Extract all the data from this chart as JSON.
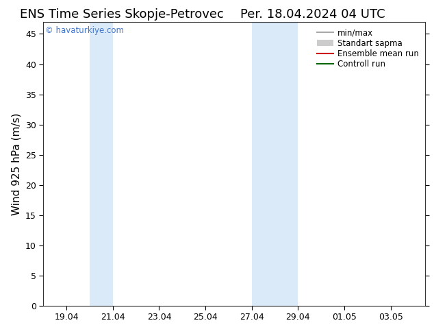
{
  "title_left": "ENS Time Series Skopje-Petrovec",
  "title_right": "Per. 18.04.2024 04 UTC",
  "ylabel": "Wind 925 hPa (m/s)",
  "watermark": "© havaturkiye.com",
  "watermark_color": "#4477cc",
  "ylim": [
    0,
    47
  ],
  "yticks": [
    0,
    5,
    10,
    15,
    20,
    25,
    30,
    35,
    40,
    45
  ],
  "xtick_labels": [
    "19.04",
    "21.04",
    "23.04",
    "25.04",
    "27.04",
    "29.04",
    "01.05",
    "03.05"
  ],
  "xtick_positions": [
    1.0,
    3.0,
    5.0,
    7.0,
    9.0,
    11.0,
    13.0,
    15.0
  ],
  "xlim": [
    0.0,
    16.5
  ],
  "blue_bands": [
    {
      "x_start": 2.0,
      "x_end": 3.0
    },
    {
      "x_start": 9.0,
      "x_end": 11.0
    }
  ],
  "blue_band_color": "#daeaf8",
  "legend_entries": [
    {
      "label": "min/max",
      "color": "#aaaaaa",
      "lw": 1.5
    },
    {
      "label": "Standart sapma",
      "color": "#cccccc",
      "lw": 8
    },
    {
      "label": "Ensemble mean run",
      "color": "#cc0000",
      "lw": 1.5
    },
    {
      "label": "Controll run",
      "color": "#006600",
      "lw": 1.5
    }
  ],
  "background_color": "#ffffff",
  "title_fontsize": 13,
  "axis_fontsize": 11,
  "tick_fontsize": 9,
  "legend_fontsize": 8.5
}
